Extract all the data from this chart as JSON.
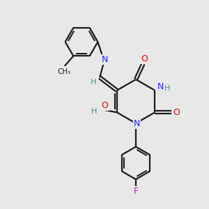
{
  "bg_color": "#e8e8e8",
  "bond_color": "#1a1a1a",
  "N_color": "#2020ff",
  "O_color": "#dd0000",
  "F_color": "#dd00dd",
  "H_color": "#4a8a8a",
  "line_width": 1.6,
  "figsize": [
    3.0,
    3.0
  ],
  "dpi": 100,
  "xlim": [
    0,
    10
  ],
  "ylim": [
    0,
    10
  ]
}
